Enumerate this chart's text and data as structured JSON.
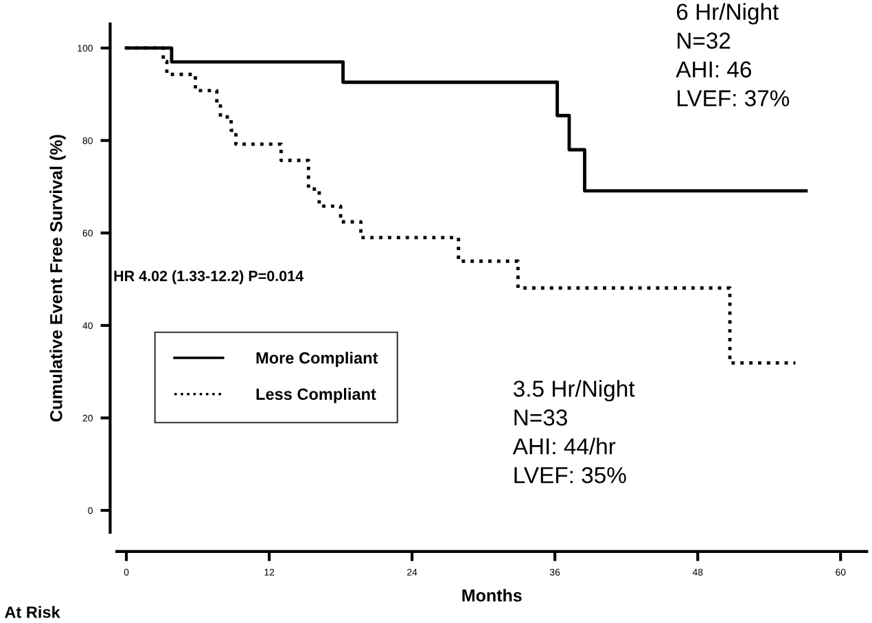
{
  "chart_data": {
    "type": "step",
    "xlabel": "Months",
    "ylabel": "Cumulative Event Free Survival (%)",
    "xlim": [
      -0.8,
      62.2
    ],
    "ylim": [
      -4.75,
      105.2
    ],
    "xticks": [
      0,
      12,
      24,
      36,
      48,
      60
    ],
    "yticks": [
      0,
      20,
      40,
      60,
      80,
      100
    ],
    "grid": false,
    "legend": "bottom left",
    "marker": "none",
    "series": [
      {
        "name": "More Compliant",
        "color": "#000000",
        "line_style": "solid",
        "x": [
          0,
          3.8,
          18.2,
          36.2,
          37.2,
          38.5,
          57.1
        ],
        "values": [
          100,
          97,
          92.6,
          85.4,
          78,
          69.1,
          69.1
        ]
      },
      {
        "name": "Less Compliant",
        "color": "#000000",
        "line_style": "dotted",
        "x": [
          0,
          3.1,
          3.4,
          5.8,
          7.6,
          7.9,
          8.8,
          9.2,
          13.0,
          15.3,
          16.2,
          18.0,
          19.7,
          27.9,
          32.9,
          50.7,
          56.2
        ],
        "values": [
          100,
          97.1,
          94.3,
          90.8,
          88,
          85.1,
          82.2,
          79.2,
          75.7,
          69.5,
          65.8,
          62.4,
          59.0,
          53.9,
          48.1,
          31.9,
          31.9
        ]
      }
    ],
    "annotations": [
      "6 Hr/Night\nN=32\nAHI: 46\nLVEF: 37%",
      "3.5 Hr/Night\nN=33\nAHI: 44/hr\nLVEF: 35%",
      "HR 4.02 (1.33-12.2) P=0.014",
      "At Risk"
    ]
  }
}
